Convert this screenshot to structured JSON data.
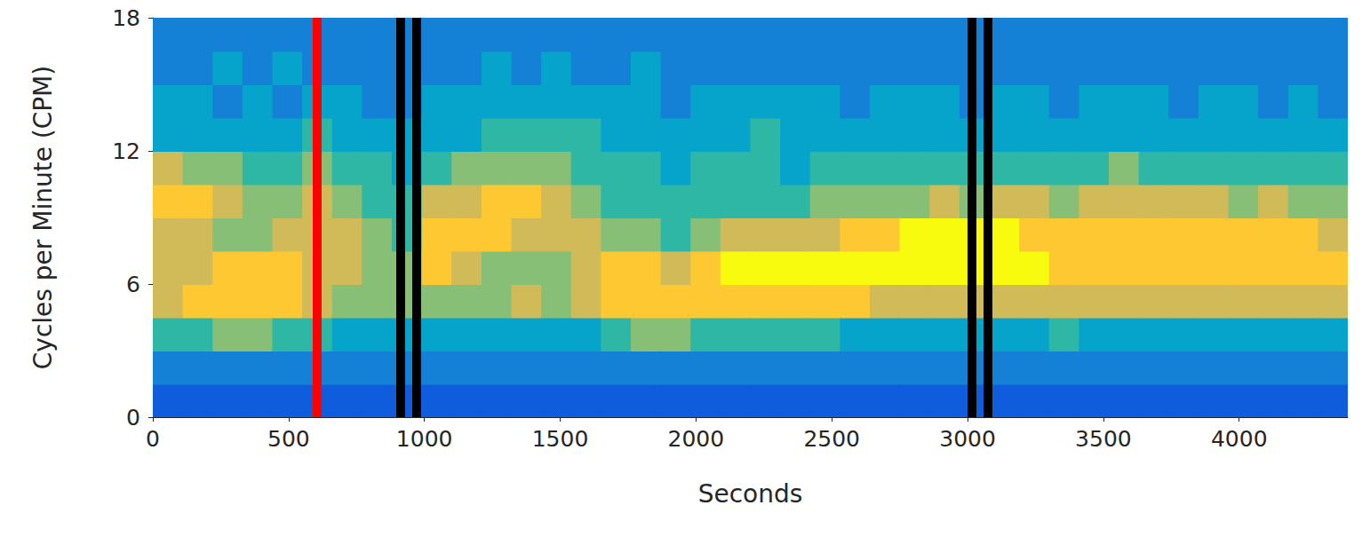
{
  "chart_data": {
    "type": "heatmap",
    "x_label": "Seconds",
    "y_label": "Cycles per Minute (CPM)",
    "xlim": [
      0,
      4400
    ],
    "xticks": [
      0,
      500,
      1000,
      1500,
      2000,
      2500,
      3000,
      3500,
      4000
    ],
    "ylim": [
      0,
      18
    ],
    "yticks": [
      0,
      6,
      12,
      18
    ],
    "value_range": [
      0,
      8
    ],
    "cells": {
      "x0": 0,
      "y0": 0,
      "width": 110,
      "height": 1.5,
      "columns": [
        [
          1,
          2,
          4,
          6,
          6,
          6,
          7,
          6,
          3,
          3,
          2,
          2
        ],
        [
          1,
          2,
          4,
          7,
          6,
          6,
          7,
          5,
          3,
          3,
          2,
          2
        ],
        [
          1,
          2,
          5,
          7,
          7,
          5,
          6,
          5,
          3,
          2,
          3,
          2
        ],
        [
          1,
          2,
          5,
          7,
          7,
          5,
          5,
          4,
          3,
          3,
          2,
          2
        ],
        [
          1,
          2,
          4,
          7,
          7,
          6,
          5,
          4,
          3,
          2,
          3,
          2
        ],
        [
          1,
          2,
          4,
          6,
          6,
          6,
          6,
          5,
          4,
          3,
          2,
          2
        ],
        [
          1,
          2,
          3,
          5,
          6,
          6,
          5,
          4,
          3,
          3,
          2,
          2
        ],
        [
          1,
          2,
          3,
          5,
          5,
          5,
          4,
          4,
          3,
          2,
          2,
          2
        ],
        [
          1,
          2,
          3,
          5,
          5,
          4,
          4,
          3,
          3,
          2,
          2,
          2
        ],
        [
          1,
          2,
          3,
          5,
          7,
          7,
          6,
          4,
          3,
          3,
          2,
          2
        ],
        [
          1,
          2,
          3,
          5,
          6,
          7,
          6,
          5,
          3,
          3,
          2,
          2
        ],
        [
          1,
          2,
          3,
          5,
          5,
          7,
          7,
          5,
          4,
          3,
          3,
          2
        ],
        [
          1,
          2,
          3,
          6,
          5,
          6,
          7,
          5,
          4,
          3,
          2,
          2
        ],
        [
          1,
          2,
          3,
          5,
          5,
          6,
          6,
          5,
          4,
          3,
          3,
          2
        ],
        [
          1,
          2,
          3,
          6,
          6,
          6,
          5,
          4,
          4,
          3,
          2,
          2
        ],
        [
          1,
          2,
          4,
          7,
          7,
          5,
          4,
          4,
          3,
          3,
          2,
          2
        ],
        [
          1,
          2,
          5,
          7,
          7,
          5,
          4,
          4,
          3,
          3,
          3,
          2
        ],
        [
          1,
          2,
          5,
          7,
          6,
          4,
          4,
          3,
          3,
          2,
          2,
          2
        ],
        [
          1,
          2,
          4,
          7,
          7,
          5,
          4,
          4,
          3,
          3,
          2,
          2
        ],
        [
          1,
          2,
          4,
          7,
          8,
          6,
          4,
          4,
          3,
          3,
          2,
          2
        ],
        [
          1,
          2,
          4,
          7,
          8,
          6,
          4,
          4,
          4,
          3,
          2,
          2
        ],
        [
          1,
          2,
          4,
          7,
          8,
          6,
          4,
          3,
          3,
          3,
          2,
          2
        ],
        [
          1,
          2,
          4,
          7,
          8,
          6,
          5,
          4,
          3,
          3,
          2,
          2
        ],
        [
          1,
          2,
          3,
          7,
          8,
          7,
          5,
          4,
          3,
          2,
          2,
          2
        ],
        [
          1,
          2,
          3,
          6,
          8,
          7,
          5,
          4,
          3,
          3,
          2,
          2
        ],
        [
          1,
          2,
          3,
          6,
          8,
          8,
          5,
          4,
          3,
          3,
          2,
          2
        ],
        [
          1,
          2,
          3,
          6,
          8,
          8,
          6,
          4,
          3,
          3,
          2,
          2
        ],
        [
          1,
          2,
          3,
          6,
          8,
          8,
          5,
          4,
          3,
          2,
          2,
          2
        ],
        [
          1,
          2,
          3,
          6,
          8,
          8,
          6,
          4,
          3,
          3,
          2,
          2
        ],
        [
          1,
          2,
          3,
          6,
          8,
          7,
          6,
          4,
          3,
          3,
          2,
          2
        ],
        [
          1,
          2,
          4,
          6,
          7,
          7,
          5,
          4,
          3,
          2,
          2,
          2
        ],
        [
          1,
          2,
          3,
          6,
          7,
          7,
          6,
          4,
          3,
          3,
          2,
          2
        ],
        [
          1,
          2,
          3,
          6,
          7,
          7,
          6,
          5,
          3,
          3,
          2,
          2
        ],
        [
          1,
          2,
          3,
          6,
          7,
          7,
          6,
          4,
          3,
          3,
          2,
          2
        ],
        [
          1,
          2,
          3,
          6,
          7,
          7,
          6,
          4,
          3,
          2,
          2,
          2
        ],
        [
          1,
          2,
          3,
          6,
          7,
          7,
          6,
          4,
          3,
          3,
          2,
          2
        ],
        [
          1,
          2,
          3,
          6,
          7,
          7,
          5,
          4,
          3,
          3,
          2,
          2
        ],
        [
          1,
          2,
          3,
          6,
          7,
          7,
          6,
          4,
          3,
          2,
          2,
          2
        ],
        [
          1,
          2,
          3,
          6,
          7,
          7,
          5,
          4,
          3,
          3,
          2,
          2
        ],
        [
          1,
          2,
          3,
          6,
          7,
          6,
          5,
          4,
          3,
          2,
          2,
          2
        ]
      ]
    },
    "markers": [
      {
        "x": 605,
        "color": "red"
      },
      {
        "x": 912,
        "color": "black"
      },
      {
        "x": 970,
        "color": "black"
      },
      {
        "x": 3015,
        "color": "black"
      },
      {
        "x": 3075,
        "color": "black"
      }
    ]
  }
}
